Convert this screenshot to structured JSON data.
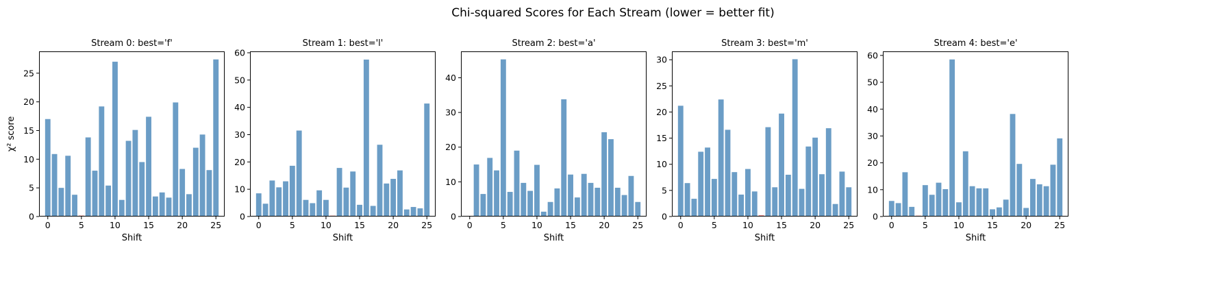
{
  "figure": {
    "title": "Chi-squared Scores for Each Stream (lower = better fit)"
  },
  "colors": {
    "bar": "#6b9dc6",
    "best_bar": "#d62728",
    "axis": "#000000",
    "background": "#ffffff"
  },
  "chart_data": [
    {
      "type": "bar",
      "title": "Stream 0: best='f'",
      "xlabel": "Shift",
      "ylabel": "χ² score",
      "best_shift": 5,
      "categories": [
        0,
        1,
        2,
        3,
        4,
        5,
        6,
        7,
        8,
        9,
        10,
        11,
        12,
        13,
        14,
        15,
        16,
        17,
        18,
        19,
        20,
        21,
        22,
        23,
        24,
        25
      ],
      "values": [
        17.0,
        10.9,
        5.0,
        10.6,
        3.8,
        0.15,
        13.8,
        8.0,
        19.2,
        5.4,
        27.0,
        2.9,
        13.2,
        15.1,
        9.5,
        17.4,
        3.5,
        4.2,
        3.3,
        19.9,
        8.3,
        3.9,
        12.0,
        14.3,
        8.1,
        27.4
      ],
      "xticks": [
        0,
        5,
        10,
        15,
        20,
        25
      ],
      "yticks": [
        0,
        5,
        10,
        15,
        20,
        25
      ],
      "ylim": [
        0,
        28.8
      ],
      "xlim": [
        -1.3,
        26.3
      ]
    },
    {
      "type": "bar",
      "title": "Stream 1: best='l'",
      "xlabel": "Shift",
      "ylabel": "",
      "best_shift": 11,
      "categories": [
        0,
        1,
        2,
        3,
        4,
        5,
        6,
        7,
        8,
        9,
        10,
        11,
        12,
        13,
        14,
        15,
        16,
        17,
        18,
        19,
        20,
        21,
        22,
        23,
        24,
        25
      ],
      "values": [
        8.5,
        4.7,
        13.2,
        10.7,
        12.9,
        18.6,
        31.5,
        6.1,
        4.9,
        9.6,
        6.1,
        0.3,
        17.8,
        10.6,
        16.5,
        4.3,
        57.5,
        3.9,
        26.3,
        12.1,
        13.8,
        16.9,
        2.6,
        3.5,
        3.0,
        41.4
      ],
      "xticks": [
        0,
        5,
        10,
        15,
        20,
        25
      ],
      "yticks": [
        0,
        10,
        20,
        30,
        40,
        50,
        60
      ],
      "ylim": [
        0,
        60.5
      ],
      "xlim": [
        -1.3,
        26.3
      ]
    },
    {
      "type": "bar",
      "title": "Stream 2: best='a'",
      "xlabel": "Shift",
      "ylabel": "",
      "best_shift": 0,
      "categories": [
        0,
        1,
        2,
        3,
        4,
        5,
        6,
        7,
        8,
        9,
        10,
        11,
        12,
        13,
        14,
        15,
        16,
        17,
        18,
        19,
        20,
        21,
        22,
        23,
        24,
        25
      ],
      "values": [
        0.2,
        15.0,
        6.5,
        16.9,
        13.3,
        45.3,
        7.1,
        19.0,
        9.7,
        7.4,
        14.9,
        1.4,
        4.2,
        8.1,
        33.8,
        12.1,
        5.5,
        12.3,
        9.7,
        8.3,
        24.3,
        22.3,
        8.3,
        6.2,
        11.7,
        4.2
      ],
      "xticks": [
        0,
        5,
        10,
        15,
        20,
        25
      ],
      "yticks": [
        0,
        10,
        20,
        30,
        40
      ],
      "ylim": [
        0,
        47.6
      ],
      "xlim": [
        -1.3,
        26.3
      ]
    },
    {
      "type": "bar",
      "title": "Stream 3: best='m'",
      "xlabel": "Shift",
      "ylabel": "",
      "best_shift": 12,
      "categories": [
        0,
        1,
        2,
        3,
        4,
        5,
        6,
        7,
        8,
        9,
        10,
        11,
        12,
        13,
        14,
        15,
        16,
        17,
        18,
        19,
        20,
        21,
        22,
        23,
        24,
        25
      ],
      "values": [
        21.2,
        6.4,
        3.4,
        12.4,
        13.2,
        7.2,
        22.4,
        16.6,
        8.5,
        4.2,
        9.1,
        4.8,
        0.2,
        17.1,
        5.6,
        19.7,
        8.0,
        30.1,
        5.3,
        13.4,
        15.1,
        8.1,
        16.9,
        2.4,
        8.6,
        5.6
      ],
      "xticks": [
        0,
        5,
        10,
        15,
        20,
        25
      ],
      "yticks": [
        0,
        5,
        10,
        15,
        20,
        25,
        30
      ],
      "ylim": [
        0,
        31.6
      ],
      "xlim": [
        -1.3,
        26.3
      ]
    },
    {
      "type": "bar",
      "title": "Stream 4: best='e'",
      "xlabel": "Shift",
      "ylabel": "",
      "best_shift": 4,
      "categories": [
        0,
        1,
        2,
        3,
        4,
        5,
        6,
        7,
        8,
        9,
        10,
        11,
        12,
        13,
        14,
        15,
        16,
        17,
        18,
        19,
        20,
        21,
        22,
        23,
        24,
        25
      ],
      "values": [
        5.8,
        5.0,
        16.5,
        3.6,
        0.3,
        11.7,
        8.1,
        12.6,
        10.2,
        58.5,
        5.3,
        24.3,
        11.3,
        10.5,
        10.5,
        2.7,
        3.4,
        6.3,
        38.2,
        19.6,
        3.2,
        14.0,
        12.0,
        11.3,
        19.3,
        29.1
      ],
      "xticks": [
        0,
        5,
        10,
        15,
        20,
        25
      ],
      "yticks": [
        0,
        10,
        20,
        30,
        40,
        50,
        60
      ],
      "ylim": [
        0,
        61.5
      ],
      "xlim": [
        -1.3,
        26.3
      ]
    }
  ]
}
